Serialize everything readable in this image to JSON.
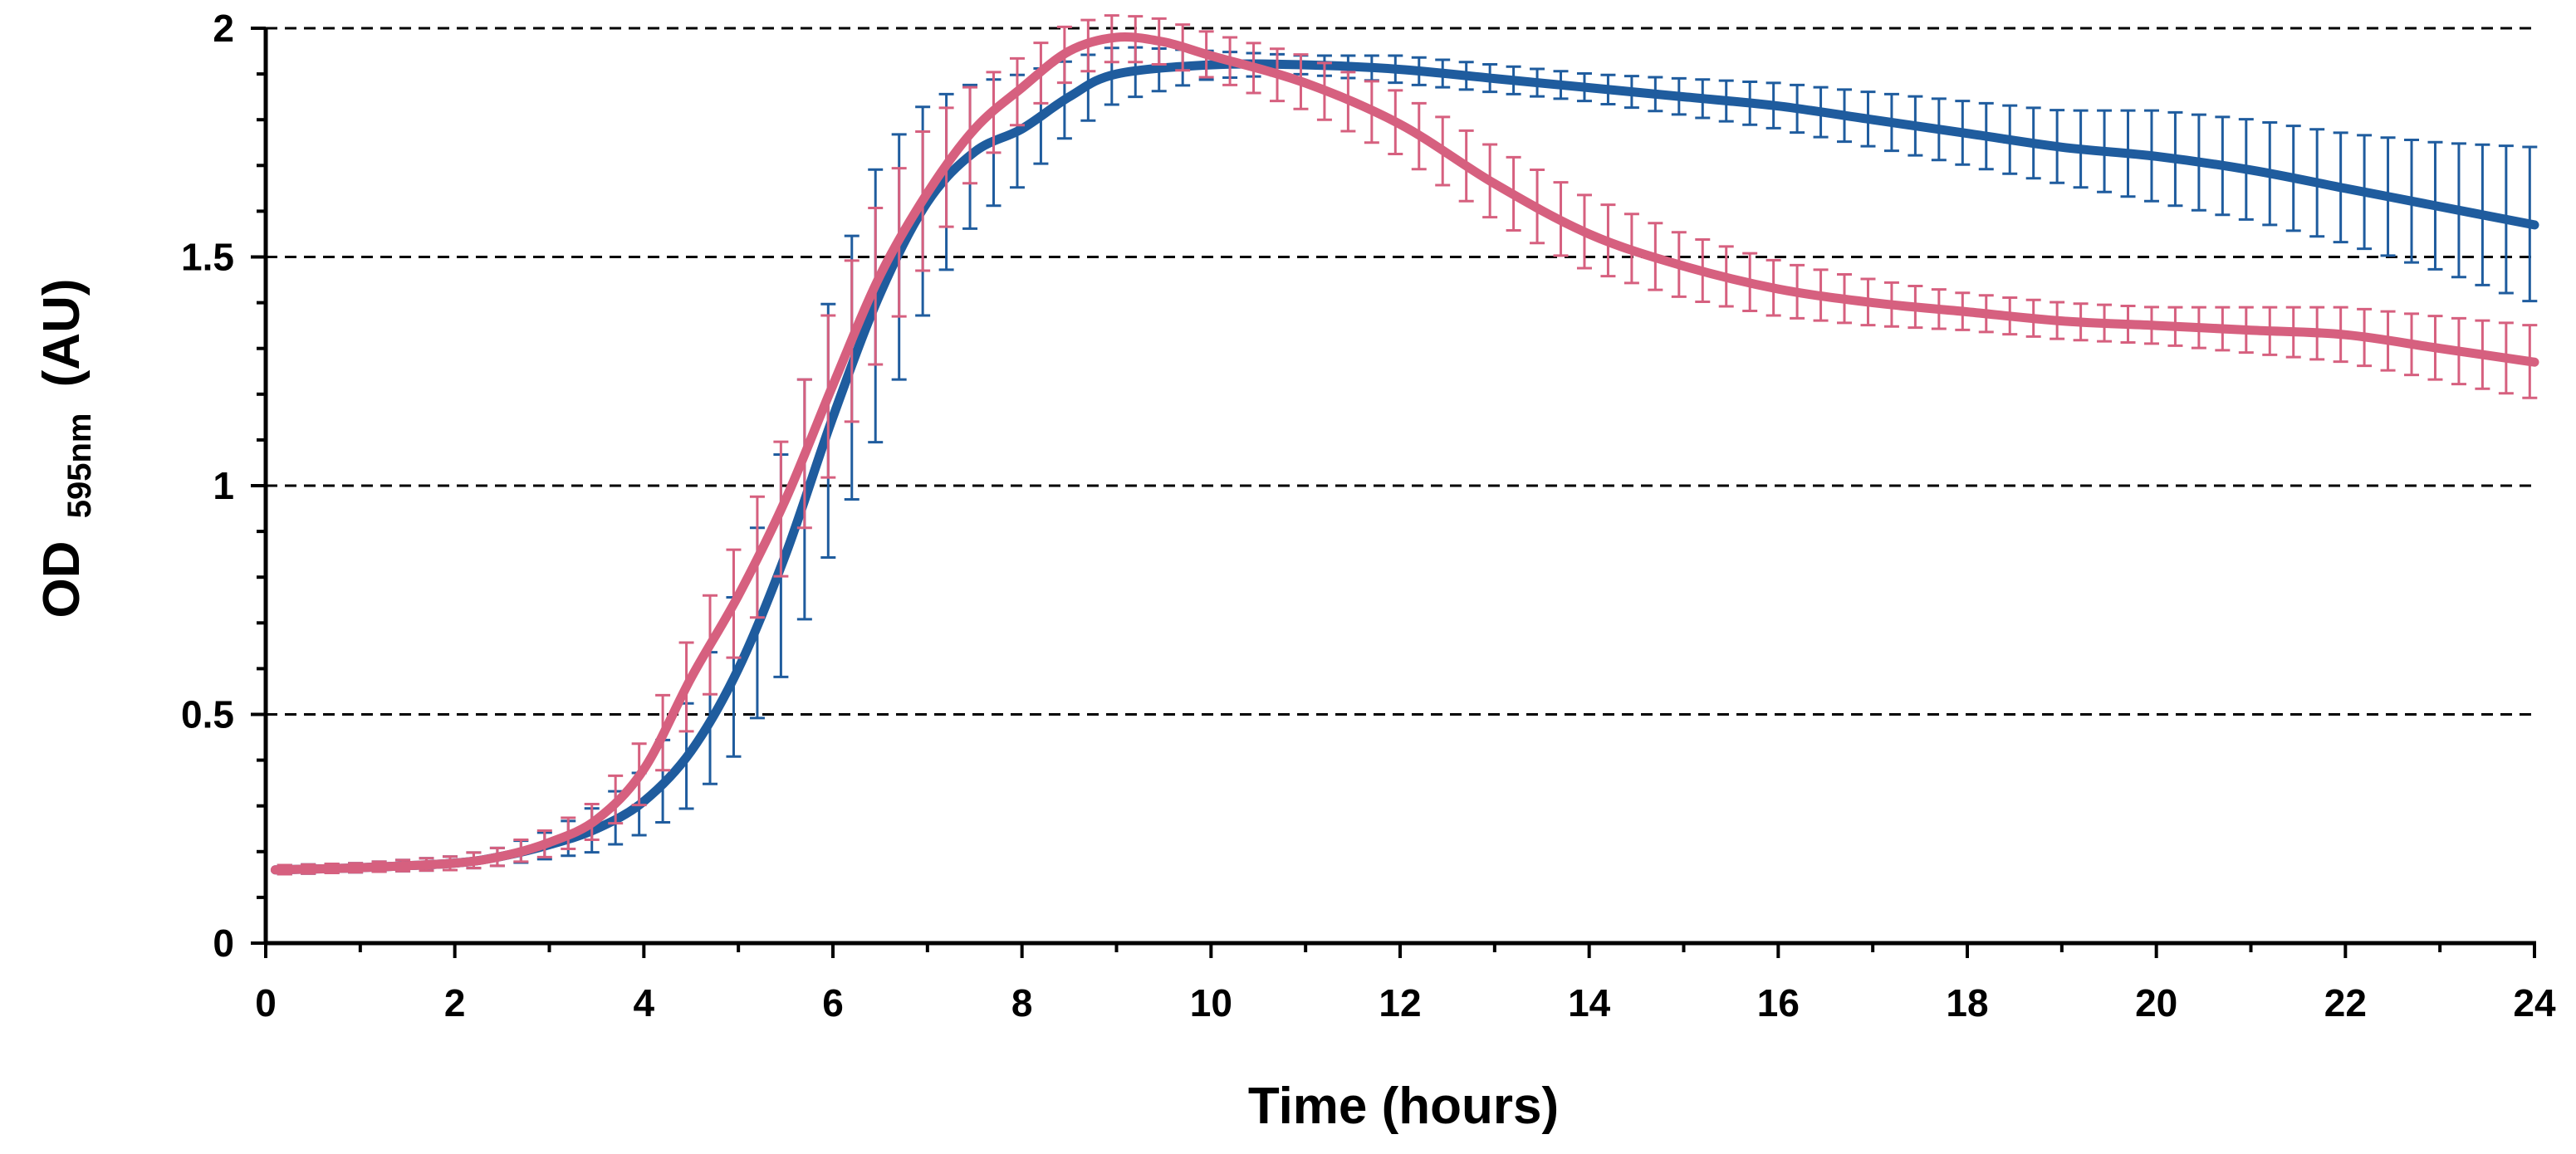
{
  "chart_data": {
    "type": "line",
    "title": "",
    "xlabel": "Time (hours)",
    "ylabel": {
      "main": "OD",
      "subscript": "595nm",
      "unit": "(AU)"
    },
    "xlim": [
      0,
      24
    ],
    "ylim": [
      0,
      2
    ],
    "xticks": [
      0,
      2,
      4,
      6,
      8,
      10,
      12,
      14,
      16,
      18,
      20,
      22,
      24
    ],
    "yticks": [
      0,
      0.5,
      1,
      1.5,
      2
    ],
    "ytick_labels": [
      "0",
      "0.5",
      "1",
      "1.5",
      "2"
    ],
    "grid": "horizontal dashed",
    "legend": "none",
    "series": [
      {
        "name": "blue",
        "color": "#1f5c9e",
        "x": [
          0.1,
          1,
          2,
          2.5,
          3,
          3.5,
          4,
          4.5,
          5,
          5.5,
          6,
          6.5,
          7,
          7.5,
          8,
          8.5,
          9,
          10,
          11,
          12,
          13,
          14,
          15,
          16,
          17,
          18,
          19,
          20,
          21,
          22,
          23,
          24
        ],
        "y": [
          0.16,
          0.165,
          0.175,
          0.19,
          0.215,
          0.25,
          0.31,
          0.42,
          0.6,
          0.85,
          1.15,
          1.42,
          1.62,
          1.73,
          1.78,
          1.85,
          1.9,
          1.92,
          1.92,
          1.91,
          1.89,
          1.87,
          1.85,
          1.83,
          1.8,
          1.77,
          1.74,
          1.72,
          1.69,
          1.65,
          1.61,
          1.57
        ],
        "error": [
          0.01,
          0.01,
          0.015,
          0.02,
          0.03,
          0.05,
          0.07,
          0.12,
          0.18,
          0.25,
          0.28,
          0.3,
          0.22,
          0.15,
          0.12,
          0.08,
          0.06,
          0.03,
          0.02,
          0.03,
          0.03,
          0.03,
          0.04,
          0.05,
          0.06,
          0.07,
          0.08,
          0.1,
          0.11,
          0.12,
          0.14,
          0.17
        ]
      },
      {
        "name": "pink",
        "color": "#d6607f",
        "x": [
          0.1,
          1,
          2,
          2.5,
          3,
          3.5,
          4,
          4.5,
          5,
          5.5,
          6,
          6.5,
          7,
          7.5,
          8,
          8.5,
          9,
          9.5,
          10,
          11,
          12,
          13,
          14,
          15,
          16,
          17,
          18,
          19,
          20,
          21,
          22,
          23,
          24
        ],
        "y": [
          0.16,
          0.165,
          0.175,
          0.19,
          0.22,
          0.27,
          0.38,
          0.58,
          0.76,
          0.97,
          1.22,
          1.46,
          1.64,
          1.78,
          1.87,
          1.95,
          1.98,
          1.97,
          1.94,
          1.88,
          1.79,
          1.66,
          1.55,
          1.48,
          1.43,
          1.4,
          1.38,
          1.36,
          1.35,
          1.34,
          1.33,
          1.3,
          1.27
        ],
        "error": [
          0.01,
          0.01,
          0.015,
          0.02,
          0.03,
          0.04,
          0.07,
          0.1,
          0.12,
          0.15,
          0.18,
          0.17,
          0.15,
          0.1,
          0.07,
          0.06,
          0.05,
          0.05,
          0.05,
          0.06,
          0.07,
          0.08,
          0.08,
          0.07,
          0.06,
          0.05,
          0.04,
          0.04,
          0.04,
          0.05,
          0.06,
          0.07,
          0.08
        ]
      }
    ]
  }
}
